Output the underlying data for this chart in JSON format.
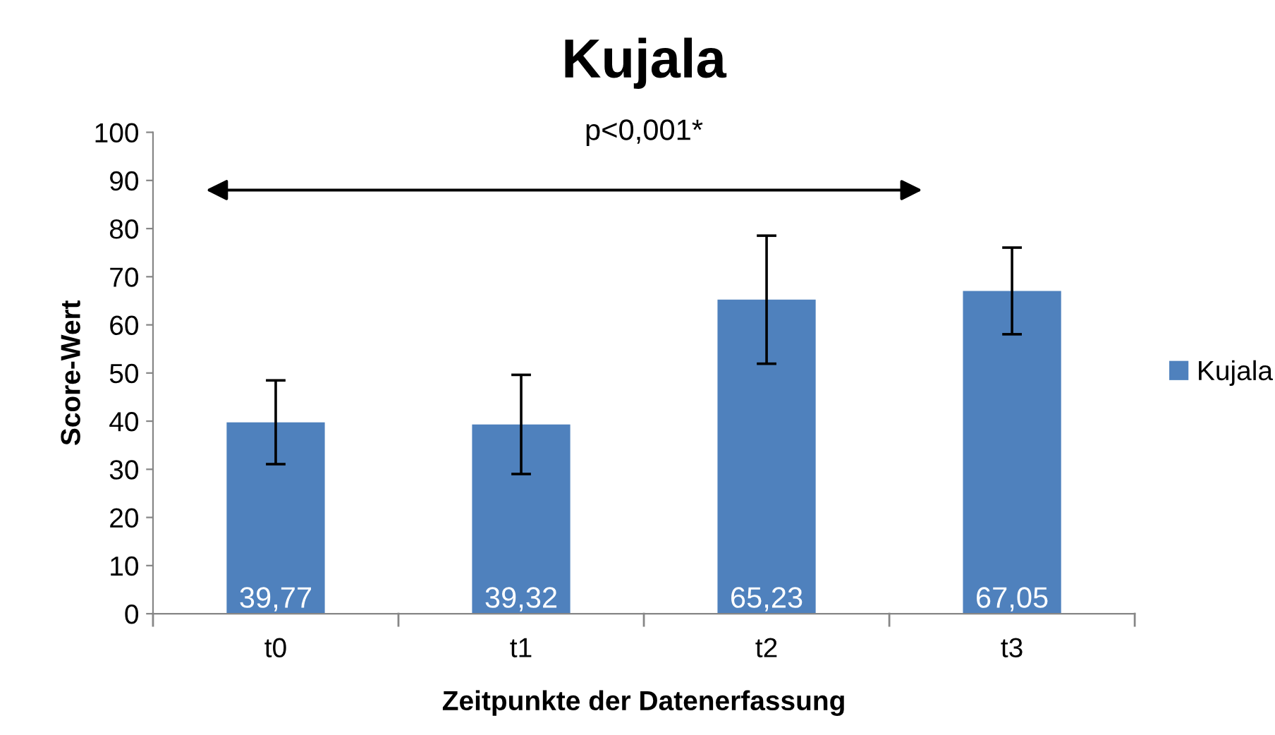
{
  "chart_data": {
    "type": "bar",
    "title": "Kujala",
    "xlabel": "Zeitpunkte der Datenerfassung",
    "ylabel": "Score-Wert",
    "categories": [
      "t0",
      "t1",
      "t2",
      "t3"
    ],
    "series": [
      {
        "name": "Kujala",
        "color": "#4f81bd",
        "values": [
          39.77,
          39.32,
          65.23,
          67.05
        ],
        "errors": [
          8.7,
          10.3,
          13.3,
          9
        ],
        "value_labels": [
          "39,77",
          "39,32",
          "65,23",
          "67,05"
        ]
      }
    ],
    "ylim": [
      0,
      100
    ],
    "yticks": [
      0,
      10,
      20,
      30,
      40,
      50,
      60,
      70,
      80,
      90,
      100
    ],
    "grid": false,
    "legend": "right",
    "annotations": [
      "p<0,001*"
    ]
  }
}
